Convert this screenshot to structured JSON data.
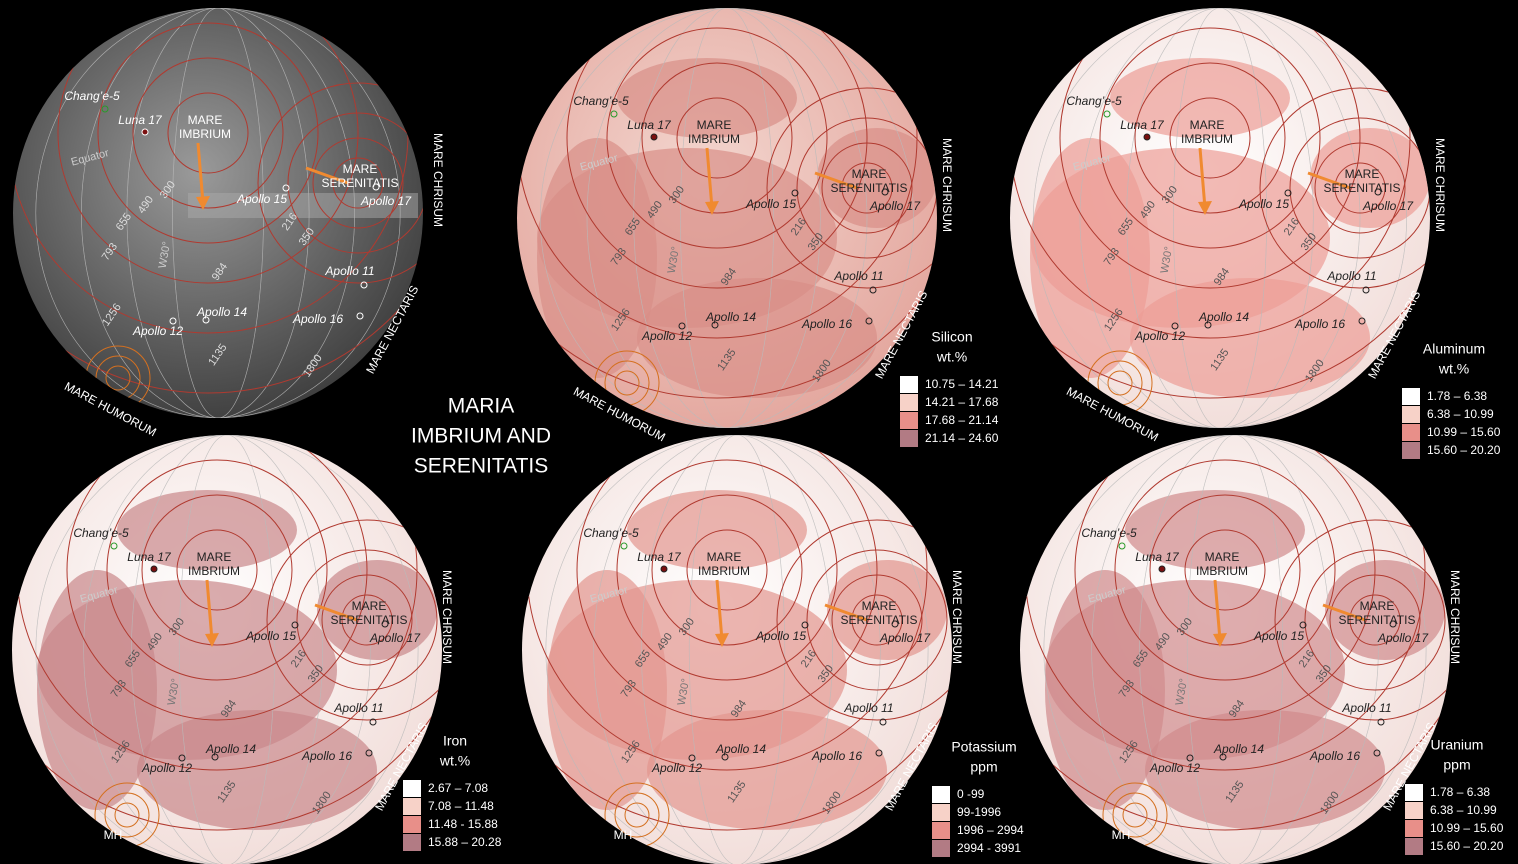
{
  "title_lines": [
    "MARIA",
    "IMBRIUM AND",
    "SERENITATIS"
  ],
  "globe_labels": {
    "sites": [
      "Chang’e-5",
      "Luna 17",
      "Apollo 15",
      "Apollo 17",
      "Apollo 11",
      "Apollo 14",
      "Apollo 12",
      "Apollo 16"
    ],
    "rings": [
      300,
      490,
      655,
      793,
      984,
      1135,
      1256,
      1800,
      216,
      350
    ],
    "equator": "Equator",
    "meridian": "W30°",
    "mare_imbrium": [
      "MARE",
      "IMBRIUM"
    ],
    "mare_serenitatis": [
      "MARE",
      "SERENITATIS"
    ],
    "mare_chrisum": "MARE  CHRISUM",
    "mare_nectaris": "MARE NECTARIS"
  },
  "panels": [
    {
      "southwest_mare": "MARE HUMORUM"
    },
    {
      "southwest_mare": "MARE HUMORUM",
      "legend": {
        "title": "Silicon",
        "unit": "wt.%",
        "ranges": [
          "10.75 – 14.21",
          "14.21 – 17.68",
          "17.68 – 21.14",
          "21.14 – 24.60"
        ]
      }
    },
    {
      "southwest_mare": "MARE HUMORUM",
      "legend": {
        "title": "Aluminum",
        "unit": "wt.%",
        "ranges": [
          "1.78 – 6.38",
          "6.38 – 10.99",
          "10.99 – 15.60",
          "15.60 – 20.20"
        ]
      }
    },
    {
      "southwest_mare": "MH",
      "legend": {
        "title": "Iron",
        "unit": "wt.%",
        "ranges": [
          "2.67 – 7.08",
          "7.08 – 11.48",
          "11.48 - 15.88",
          "15.88 – 20.28"
        ]
      }
    },
    {
      "southwest_mare": "MH",
      "legend": {
        "title": "Potassium",
        "unit": "ppm",
        "ranges": [
          "0 -99",
          "99-1996",
          "1996 – 2994",
          "2994 - 3991"
        ]
      }
    },
    {
      "southwest_mare": "MH",
      "legend": {
        "title": "Uranium",
        "unit": "ppm",
        "ranges": [
          "1.78 – 6.38",
          "6.38 – 10.99",
          "10.99 – 15.60",
          "15.60 – 20.20"
        ]
      }
    }
  ]
}
